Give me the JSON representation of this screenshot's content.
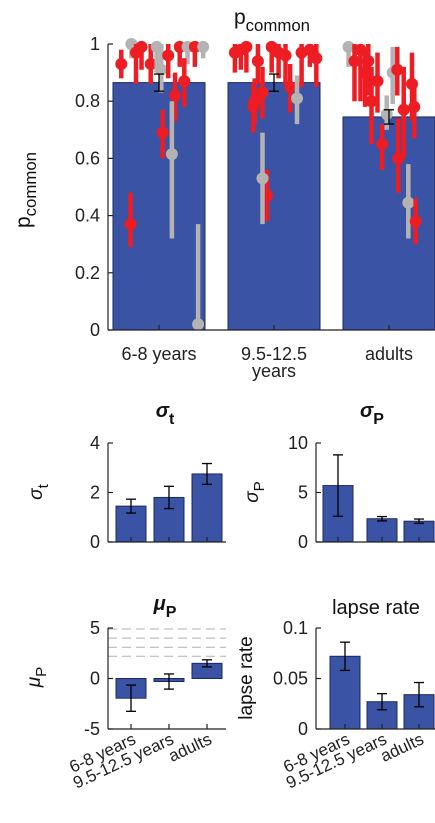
{
  "colors": {
    "bar_fill": "#3a53a4",
    "bar_stroke": "#1a2a5e",
    "red": "#ee1c23",
    "gray": "#b3b3b3",
    "dashed": "#b0b0b0"
  },
  "chart_data": [
    {
      "id": "pcommon",
      "type": "bar",
      "title_main": "p",
      "title_sub": "common",
      "ylabel_main": "p",
      "ylabel_sub": "common",
      "categories": [
        "6-8 years",
        "9.5-12.5",
        "adults"
      ],
      "category_sublabels": [
        "",
        "years",
        ""
      ],
      "values": [
        0.865,
        0.865,
        0.745
      ],
      "errors": [
        0.03,
        0.03,
        0.025
      ],
      "ylim": [
        0,
        1
      ],
      "yticks": [
        "0",
        "0.2",
        "0.4",
        "0.6",
        "0.8",
        "1"
      ],
      "ytick_values": [
        0,
        0.2,
        0.4,
        0.6,
        0.8,
        1.0
      ],
      "overlay_points": [
        {
          "g": 0,
          "dx": -0.82,
          "y": 0.93,
          "lo": 0.88,
          "hi": 0.98,
          "c": "red"
        },
        {
          "g": 0,
          "dx": -0.6,
          "y": 1.0,
          "lo": 0.95,
          "hi": 1.0,
          "c": "gray"
        },
        {
          "g": 0,
          "dx": -0.5,
          "y": 0.97,
          "lo": 0.86,
          "hi": 1.0,
          "c": "red"
        },
        {
          "g": 0,
          "dx": -0.38,
          "y": 0.99,
          "lo": 0.91,
          "hi": 1.0,
          "c": "red"
        },
        {
          "g": 0,
          "dx": -0.18,
          "y": 0.93,
          "lo": 0.86,
          "hi": 1.0,
          "c": "red"
        },
        {
          "g": 0,
          "dx": -0.05,
          "y": 0.99,
          "lo": 0.9,
          "hi": 1.0,
          "c": "gray"
        },
        {
          "g": 0,
          "dx": 0.05,
          "y": 0.91,
          "lo": 0.83,
          "hi": 1.0,
          "c": "gray"
        },
        {
          "g": 0,
          "dx": 0.2,
          "y": 0.96,
          "lo": 0.88,
          "hi": 1.0,
          "c": "red"
        },
        {
          "g": 0,
          "dx": 0.35,
          "y": 0.82,
          "lo": 0.73,
          "hi": 0.9,
          "c": "red"
        },
        {
          "g": 0,
          "dx": 0.45,
          "y": 0.99,
          "lo": 0.92,
          "hi": 1.0,
          "c": "red"
        },
        {
          "g": 0,
          "dx": 0.62,
          "y": 0.99,
          "lo": 0.93,
          "hi": 1.0,
          "c": "gray"
        },
        {
          "g": 0,
          "dx": 0.78,
          "y": 0.99,
          "lo": 0.92,
          "hi": 1.0,
          "c": "red"
        },
        {
          "g": 0,
          "dx": 0.96,
          "y": 0.99,
          "lo": 0.95,
          "hi": 1.0,
          "c": "gray"
        },
        {
          "g": 0,
          "dx": 0.08,
          "y": 0.69,
          "lo": 0.6,
          "hi": 0.77,
          "c": "red"
        },
        {
          "g": 0,
          "dx": 0.55,
          "y": 0.87,
          "lo": 0.78,
          "hi": 0.95,
          "c": "red"
        },
        {
          "g": 0,
          "dx": 0.28,
          "y": 0.615,
          "lo": 0.32,
          "hi": 0.8,
          "c": "gray"
        },
        {
          "g": 0,
          "dx": -0.62,
          "y": 0.37,
          "lo": 0.29,
          "hi": 0.48,
          "c": "red"
        },
        {
          "g": 0,
          "dx": 0.85,
          "y": 0.02,
          "lo": 0.0,
          "hi": 0.37,
          "c": "gray"
        },
        {
          "g": 1,
          "dx": -0.85,
          "y": 0.97,
          "lo": 0.9,
          "hi": 1.0,
          "c": "red"
        },
        {
          "g": 1,
          "dx": -0.72,
          "y": 0.98,
          "lo": 0.91,
          "hi": 1.0,
          "c": "red"
        },
        {
          "g": 1,
          "dx": -0.6,
          "y": 0.99,
          "lo": 0.9,
          "hi": 1.0,
          "c": "red"
        },
        {
          "g": 1,
          "dx": -0.45,
          "y": 0.78,
          "lo": 0.69,
          "hi": 0.86,
          "c": "red"
        },
        {
          "g": 1,
          "dx": -0.35,
          "y": 0.94,
          "lo": 0.86,
          "hi": 1.0,
          "c": "red"
        },
        {
          "g": 1,
          "dx": -0.25,
          "y": 0.83,
          "lo": 0.74,
          "hi": 0.92,
          "c": "red"
        },
        {
          "g": 1,
          "dx": -0.15,
          "y": 0.47,
          "lo": 0.38,
          "hi": 0.56,
          "c": "red"
        },
        {
          "g": 1,
          "dx": -0.25,
          "y": 0.53,
          "lo": 0.37,
          "hi": 0.69,
          "c": "gray"
        },
        {
          "g": 1,
          "dx": -0.05,
          "y": 0.99,
          "lo": 0.9,
          "hi": 1.0,
          "c": "red"
        },
        {
          "g": 1,
          "dx": 0.1,
          "y": 0.97,
          "lo": 0.88,
          "hi": 1.0,
          "c": "red"
        },
        {
          "g": 1,
          "dx": 0.25,
          "y": 0.96,
          "lo": 0.86,
          "hi": 1.0,
          "c": "red"
        },
        {
          "g": 1,
          "dx": 0.35,
          "y": 0.85,
          "lo": 0.76,
          "hi": 0.93,
          "c": "red"
        },
        {
          "g": 1,
          "dx": 0.5,
          "y": 0.81,
          "lo": 0.72,
          "hi": 0.89,
          "c": "gray"
        },
        {
          "g": 1,
          "dx": 0.6,
          "y": 0.97,
          "lo": 0.85,
          "hi": 1.0,
          "c": "red"
        },
        {
          "g": 1,
          "dx": 0.78,
          "y": 0.98,
          "lo": 0.92,
          "hi": 1.0,
          "c": "red"
        },
        {
          "g": 1,
          "dx": 0.92,
          "y": 0.95,
          "lo": 0.85,
          "hi": 1.0,
          "c": "red"
        },
        {
          "g": 1,
          "dx": -0.42,
          "y": 0.8,
          "lo": 0.72,
          "hi": 0.88,
          "c": "red"
        },
        {
          "g": 2,
          "dx": -0.88,
          "y": 0.99,
          "lo": 0.92,
          "hi": 1.0,
          "c": "gray"
        },
        {
          "g": 2,
          "dx": -0.75,
          "y": 0.94,
          "lo": 0.8,
          "hi": 1.0,
          "c": "red"
        },
        {
          "g": 2,
          "dx": -0.62,
          "y": 0.98,
          "lo": 0.8,
          "hi": 1.0,
          "c": "red"
        },
        {
          "g": 2,
          "dx": -0.52,
          "y": 0.9,
          "lo": 0.78,
          "hi": 0.98,
          "c": "red"
        },
        {
          "g": 2,
          "dx": -0.45,
          "y": 0.94,
          "lo": 0.82,
          "hi": 1.0,
          "c": "red"
        },
        {
          "g": 2,
          "dx": -0.38,
          "y": 0.8,
          "lo": 0.65,
          "hi": 0.92,
          "c": "red"
        },
        {
          "g": 2,
          "dx": -0.25,
          "y": 0.87,
          "lo": 0.76,
          "hi": 0.97,
          "c": "red"
        },
        {
          "g": 2,
          "dx": -0.15,
          "y": 0.65,
          "lo": 0.56,
          "hi": 0.72,
          "c": "red"
        },
        {
          "g": 2,
          "dx": -0.05,
          "y": 0.755,
          "lo": 0.7,
          "hi": 0.82,
          "c": "gray"
        },
        {
          "g": 2,
          "dx": 0.08,
          "y": 0.9,
          "lo": 0.79,
          "hi": 0.99,
          "c": "gray"
        },
        {
          "g": 2,
          "dx": 0.2,
          "y": 0.6,
          "lo": 0.48,
          "hi": 0.74,
          "c": "red"
        },
        {
          "g": 2,
          "dx": 0.32,
          "y": 0.77,
          "lo": 0.6,
          "hi": 0.92,
          "c": "red"
        },
        {
          "g": 2,
          "dx": 0.42,
          "y": 0.445,
          "lo": 0.32,
          "hi": 0.58,
          "c": "gray"
        },
        {
          "g": 2,
          "dx": 0.5,
          "y": 0.86,
          "lo": 0.73,
          "hi": 0.97,
          "c": "red"
        },
        {
          "g": 2,
          "dx": 0.55,
          "y": 0.78,
          "lo": 0.67,
          "hi": 0.87,
          "c": "red"
        },
        {
          "g": 2,
          "dx": 0.58,
          "y": 0.38,
          "lo": 0.3,
          "hi": 0.46,
          "c": "red"
        },
        {
          "g": 2,
          "dx": 0.18,
          "y": 0.91,
          "lo": 0.82,
          "hi": 0.99,
          "c": "red"
        }
      ]
    },
    {
      "id": "sigma_t",
      "type": "bar",
      "title_main": "σ",
      "title_sub": "t",
      "ylabel_main": "σ",
      "ylabel_sub": "t",
      "categories": [
        "6-8 years",
        "9.5-12.5 years",
        "adults"
      ],
      "values": [
        1.45,
        1.8,
        2.75
      ],
      "errors": [
        0.28,
        0.45,
        0.42
      ],
      "ylim": [
        0,
        4
      ],
      "yticks": [
        "0",
        "2",
        "4"
      ],
      "ytick_values": [
        0,
        2,
        4
      ]
    },
    {
      "id": "sigma_p",
      "type": "bar",
      "title_main": "σ",
      "title_sub": "P",
      "ylabel_main": "σ",
      "ylabel_sub": "P",
      "categories": [
        "6-8 years",
        "9.5-12.5 years",
        "adults"
      ],
      "values": [
        5.7,
        2.35,
        2.1
      ],
      "errors": [
        3.1,
        0.22,
        0.22
      ],
      "ylim": [
        0,
        10
      ],
      "yticks": [
        "0",
        "5",
        "10"
      ],
      "ytick_values": [
        0,
        5,
        10
      ]
    },
    {
      "id": "mu_p",
      "type": "bar",
      "title_main": "μ",
      "title_sub": "P",
      "ylabel_main": "μ",
      "ylabel_sub": "P",
      "categories": [
        "6-8 years",
        "9.5-12.5 years",
        "adults"
      ],
      "values": [
        -1.95,
        -0.3,
        1.5
      ],
      "errors": [
        1.3,
        0.75,
        0.35
      ],
      "ylim": [
        -5,
        5
      ],
      "yticks": [
        "-5",
        "0",
        "5"
      ],
      "ytick_values": [
        -5,
        0,
        5
      ],
      "dashed_lines": [
        2.2,
        3.1,
        4.0,
        4.9
      ]
    },
    {
      "id": "lapse",
      "type": "bar",
      "title_main": "lapse rate",
      "title_sub": "",
      "ylabel_main": "lapse rate",
      "ylabel_sub": "",
      "categories": [
        "6-8 years",
        "9.5-12.5 years",
        "adults"
      ],
      "values": [
        0.072,
        0.027,
        0.034
      ],
      "errors": [
        0.014,
        0.008,
        0.012
      ],
      "ylim": [
        0,
        0.1
      ],
      "yticks": [
        "0",
        "0.05",
        "0.1"
      ],
      "ytick_values": [
        0,
        0.05,
        0.1
      ]
    }
  ]
}
